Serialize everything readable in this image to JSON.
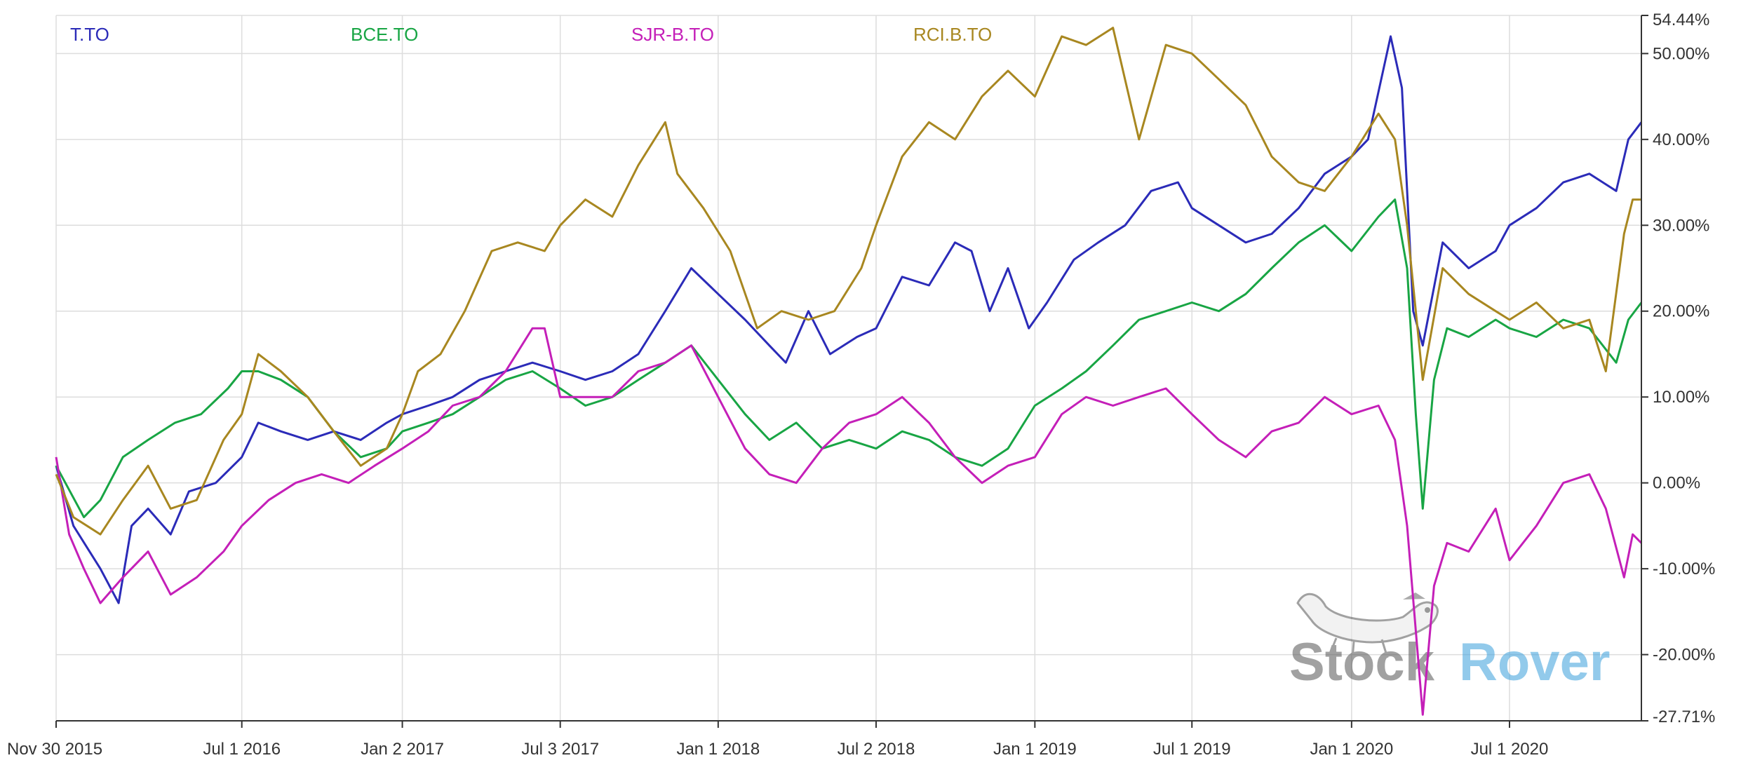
{
  "chart_data": {
    "type": "line",
    "legend": [
      "T.TO",
      "BCE.TO",
      "SJR-B.TO",
      "RCI.B.TO"
    ],
    "legend_placement": "top",
    "x_tick_labels": [
      "Nov 30 2015",
      "Jul 1 2016",
      "Jan 2 2017",
      "Jul 3 2017",
      "Jan 1 2018",
      "Jul 2 2018",
      "Jan 1 2019",
      "Jul 1 2019",
      "Jan 1 2020",
      "Jul 1 2020"
    ],
    "x_tick_dates": [
      "2015-11-30",
      "2016-07-01",
      "2017-01-02",
      "2017-07-03",
      "2018-01-01",
      "2018-07-02",
      "2019-01-01",
      "2019-07-01",
      "2020-01-01",
      "2020-07-01"
    ],
    "x_range": [
      "2015-11-30",
      "2020-11-30"
    ],
    "y_tick_labels": [
      "54.44%",
      "50.00%",
      "40.00%",
      "30.00%",
      "20.00%",
      "10.00%",
      "0.00%",
      "-10.00%",
      "-20.00%",
      "-27.71%"
    ],
    "y_tick_values": [
      54.44,
      50,
      40,
      30,
      20,
      10,
      0,
      -10,
      -20,
      -27.71
    ],
    "ylim": [
      -27.71,
      54.44
    ],
    "y_axis_side": "right",
    "grid": true,
    "watermark": {
      "text_main": "Stock",
      "text_accent": "Rover",
      "icon": "dog-icon"
    },
    "series": [
      {
        "name": "T.TO",
        "color": "#2b2bb8",
        "points": [
          [
            "2015-11-30",
            2
          ],
          [
            "2015-12-20",
            -5
          ],
          [
            "2016-01-20",
            -10
          ],
          [
            "2016-02-10",
            -14
          ],
          [
            "2016-02-25",
            -5
          ],
          [
            "2016-03-15",
            -3
          ],
          [
            "2016-04-10",
            -6
          ],
          [
            "2016-05-01",
            -1
          ],
          [
            "2016-06-01",
            0
          ],
          [
            "2016-07-01",
            3
          ],
          [
            "2016-07-20",
            7
          ],
          [
            "2016-08-15",
            6
          ],
          [
            "2016-09-15",
            5
          ],
          [
            "2016-10-15",
            6
          ],
          [
            "2016-11-15",
            5
          ],
          [
            "2016-12-15",
            7
          ],
          [
            "2017-01-02",
            8
          ],
          [
            "2017-02-01",
            9
          ],
          [
            "2017-03-01",
            10
          ],
          [
            "2017-04-01",
            12
          ],
          [
            "2017-05-01",
            13
          ],
          [
            "2017-06-01",
            14
          ],
          [
            "2017-07-03",
            13
          ],
          [
            "2017-08-01",
            12
          ],
          [
            "2017-09-01",
            13
          ],
          [
            "2017-10-01",
            15
          ],
          [
            "2017-11-01",
            20
          ],
          [
            "2017-12-01",
            25
          ],
          [
            "2018-01-01",
            22
          ],
          [
            "2018-02-01",
            19
          ],
          [
            "2018-03-01",
            16
          ],
          [
            "2018-03-20",
            14
          ],
          [
            "2018-04-15",
            20
          ],
          [
            "2018-05-10",
            15
          ],
          [
            "2018-06-10",
            17
          ],
          [
            "2018-07-02",
            18
          ],
          [
            "2018-08-01",
            24
          ],
          [
            "2018-09-01",
            23
          ],
          [
            "2018-10-01",
            28
          ],
          [
            "2018-10-20",
            27
          ],
          [
            "2018-11-10",
            20
          ],
          [
            "2018-12-01",
            25
          ],
          [
            "2018-12-25",
            18
          ],
          [
            "2019-01-15",
            21
          ],
          [
            "2019-02-15",
            26
          ],
          [
            "2019-03-15",
            28
          ],
          [
            "2019-04-15",
            30
          ],
          [
            "2019-05-15",
            34
          ],
          [
            "2019-06-15",
            35
          ],
          [
            "2019-07-01",
            32
          ],
          [
            "2019-08-01",
            30
          ],
          [
            "2019-09-01",
            28
          ],
          [
            "2019-10-01",
            29
          ],
          [
            "2019-11-01",
            32
          ],
          [
            "2019-12-01",
            36
          ],
          [
            "2020-01-01",
            38
          ],
          [
            "2020-01-20",
            40
          ],
          [
            "2020-02-15",
            52
          ],
          [
            "2020-02-28",
            46
          ],
          [
            "2020-03-12",
            20
          ],
          [
            "2020-03-23",
            16
          ],
          [
            "2020-04-15",
            28
          ],
          [
            "2020-05-15",
            25
          ],
          [
            "2020-06-15",
            27
          ],
          [
            "2020-07-01",
            30
          ],
          [
            "2020-08-01",
            32
          ],
          [
            "2020-09-01",
            35
          ],
          [
            "2020-10-01",
            36
          ],
          [
            "2020-11-01",
            34
          ],
          [
            "2020-11-15",
            40
          ],
          [
            "2020-11-30",
            42
          ]
        ]
      },
      {
        "name": "BCE.TO",
        "color": "#18a544",
        "points": [
          [
            "2015-11-30",
            2
          ],
          [
            "2016-01-01",
            -4
          ],
          [
            "2016-01-20",
            -2
          ],
          [
            "2016-02-15",
            3
          ],
          [
            "2016-03-15",
            5
          ],
          [
            "2016-04-15",
            7
          ],
          [
            "2016-05-15",
            8
          ],
          [
            "2016-06-15",
            11
          ],
          [
            "2016-07-01",
            13
          ],
          [
            "2016-07-20",
            13
          ],
          [
            "2016-08-15",
            12
          ],
          [
            "2016-09-15",
            10
          ],
          [
            "2016-10-15",
            6
          ],
          [
            "2016-11-15",
            3
          ],
          [
            "2016-12-15",
            4
          ],
          [
            "2017-01-02",
            6
          ],
          [
            "2017-02-01",
            7
          ],
          [
            "2017-03-01",
            8
          ],
          [
            "2017-04-01",
            10
          ],
          [
            "2017-05-01",
            12
          ],
          [
            "2017-06-01",
            13
          ],
          [
            "2017-07-03",
            11
          ],
          [
            "2017-08-01",
            9
          ],
          [
            "2017-09-01",
            10
          ],
          [
            "2017-10-01",
            12
          ],
          [
            "2017-11-01",
            14
          ],
          [
            "2017-12-01",
            16
          ],
          [
            "2018-01-01",
            12
          ],
          [
            "2018-02-01",
            8
          ],
          [
            "2018-03-01",
            5
          ],
          [
            "2018-04-01",
            7
          ],
          [
            "2018-05-01",
            4
          ],
          [
            "2018-06-01",
            5
          ],
          [
            "2018-07-02",
            4
          ],
          [
            "2018-08-01",
            6
          ],
          [
            "2018-09-01",
            5
          ],
          [
            "2018-10-01",
            3
          ],
          [
            "2018-11-01",
            2
          ],
          [
            "2018-12-01",
            4
          ],
          [
            "2019-01-01",
            9
          ],
          [
            "2019-02-01",
            11
          ],
          [
            "2019-03-01",
            13
          ],
          [
            "2019-04-01",
            16
          ],
          [
            "2019-05-01",
            19
          ],
          [
            "2019-06-01",
            20
          ],
          [
            "2019-07-01",
            21
          ],
          [
            "2019-08-01",
            20
          ],
          [
            "2019-09-01",
            22
          ],
          [
            "2019-10-01",
            25
          ],
          [
            "2019-11-01",
            28
          ],
          [
            "2019-12-01",
            30
          ],
          [
            "2020-01-01",
            27
          ],
          [
            "2020-02-01",
            31
          ],
          [
            "2020-02-20",
            33
          ],
          [
            "2020-03-05",
            25
          ],
          [
            "2020-03-15",
            8
          ],
          [
            "2020-03-23",
            -3
          ],
          [
            "2020-04-05",
            12
          ],
          [
            "2020-04-20",
            18
          ],
          [
            "2020-05-15",
            17
          ],
          [
            "2020-06-15",
            19
          ],
          [
            "2020-07-01",
            18
          ],
          [
            "2020-08-01",
            17
          ],
          [
            "2020-09-01",
            19
          ],
          [
            "2020-10-01",
            18
          ],
          [
            "2020-11-01",
            14
          ],
          [
            "2020-11-15",
            19
          ],
          [
            "2020-11-30",
            21
          ]
        ]
      },
      {
        "name": "SJR-B.TO",
        "color": "#c41fb8",
        "points": [
          [
            "2015-11-30",
            3
          ],
          [
            "2015-12-15",
            -6
          ],
          [
            "2016-01-01",
            -10
          ],
          [
            "2016-01-20",
            -14
          ],
          [
            "2016-02-15",
            -11
          ],
          [
            "2016-03-15",
            -8
          ],
          [
            "2016-04-10",
            -13
          ],
          [
            "2016-05-10",
            -11
          ],
          [
            "2016-06-10",
            -8
          ],
          [
            "2016-07-01",
            -5
          ],
          [
            "2016-08-01",
            -2
          ],
          [
            "2016-09-01",
            0
          ],
          [
            "2016-10-01",
            1
          ],
          [
            "2016-11-01",
            0
          ],
          [
            "2016-12-01",
            2
          ],
          [
            "2017-01-02",
            4
          ],
          [
            "2017-02-01",
            6
          ],
          [
            "2017-03-01",
            9
          ],
          [
            "2017-04-01",
            10
          ],
          [
            "2017-05-01",
            13
          ],
          [
            "2017-06-01",
            18
          ],
          [
            "2017-06-15",
            18
          ],
          [
            "2017-07-03",
            10
          ],
          [
            "2017-08-01",
            10
          ],
          [
            "2017-09-01",
            10
          ],
          [
            "2017-10-01",
            13
          ],
          [
            "2017-11-01",
            14
          ],
          [
            "2017-12-01",
            16
          ],
          [
            "2018-01-01",
            10
          ],
          [
            "2018-02-01",
            4
          ],
          [
            "2018-03-01",
            1
          ],
          [
            "2018-04-01",
            0
          ],
          [
            "2018-05-01",
            4
          ],
          [
            "2018-06-01",
            7
          ],
          [
            "2018-07-02",
            8
          ],
          [
            "2018-08-01",
            10
          ],
          [
            "2018-09-01",
            7
          ],
          [
            "2018-10-01",
            3
          ],
          [
            "2018-11-01",
            0
          ],
          [
            "2018-12-01",
            2
          ],
          [
            "2019-01-01",
            3
          ],
          [
            "2019-02-01",
            8
          ],
          [
            "2019-03-01",
            10
          ],
          [
            "2019-04-01",
            9
          ],
          [
            "2019-05-01",
            10
          ],
          [
            "2019-06-01",
            11
          ],
          [
            "2019-07-01",
            8
          ],
          [
            "2019-08-01",
            5
          ],
          [
            "2019-09-01",
            3
          ],
          [
            "2019-10-01",
            6
          ],
          [
            "2019-11-01",
            7
          ],
          [
            "2019-12-01",
            10
          ],
          [
            "2020-01-01",
            8
          ],
          [
            "2020-02-01",
            9
          ],
          [
            "2020-02-20",
            5
          ],
          [
            "2020-03-05",
            -5
          ],
          [
            "2020-03-23",
            -27
          ],
          [
            "2020-04-05",
            -12
          ],
          [
            "2020-04-20",
            -7
          ],
          [
            "2020-05-15",
            -8
          ],
          [
            "2020-06-15",
            -3
          ],
          [
            "2020-07-01",
            -9
          ],
          [
            "2020-08-01",
            -5
          ],
          [
            "2020-09-01",
            0
          ],
          [
            "2020-10-01",
            1
          ],
          [
            "2020-10-20",
            -3
          ],
          [
            "2020-11-10",
            -11
          ],
          [
            "2020-11-20",
            -6
          ],
          [
            "2020-11-30",
            -7
          ]
        ]
      },
      {
        "name": "RCI.B.TO",
        "color": "#a88720",
        "points": [
          [
            "2015-11-30",
            1
          ],
          [
            "2015-12-20",
            -4
          ],
          [
            "2016-01-20",
            -6
          ],
          [
            "2016-02-15",
            -2
          ],
          [
            "2016-03-15",
            2
          ],
          [
            "2016-04-10",
            -3
          ],
          [
            "2016-05-10",
            -2
          ],
          [
            "2016-06-10",
            5
          ],
          [
            "2016-07-01",
            8
          ],
          [
            "2016-07-20",
            15
          ],
          [
            "2016-08-15",
            13
          ],
          [
            "2016-09-15",
            10
          ],
          [
            "2016-10-15",
            6
          ],
          [
            "2016-11-15",
            2
          ],
          [
            "2016-12-15",
            4
          ],
          [
            "2017-01-02",
            8
          ],
          [
            "2017-01-20",
            13
          ],
          [
            "2017-02-15",
            15
          ],
          [
            "2017-03-15",
            20
          ],
          [
            "2017-04-15",
            27
          ],
          [
            "2017-05-15",
            28
          ],
          [
            "2017-06-15",
            27
          ],
          [
            "2017-07-03",
            30
          ],
          [
            "2017-08-01",
            33
          ],
          [
            "2017-09-01",
            31
          ],
          [
            "2017-10-01",
            37
          ],
          [
            "2017-11-01",
            42
          ],
          [
            "2017-11-15",
            36
          ],
          [
            "2017-12-15",
            32
          ],
          [
            "2018-01-15",
            27
          ],
          [
            "2018-02-15",
            18
          ],
          [
            "2018-03-15",
            20
          ],
          [
            "2018-04-15",
            19
          ],
          [
            "2018-05-15",
            20
          ],
          [
            "2018-06-15",
            25
          ],
          [
            "2018-07-02",
            30
          ],
          [
            "2018-08-01",
            38
          ],
          [
            "2018-09-01",
            42
          ],
          [
            "2018-10-01",
            40
          ],
          [
            "2018-11-01",
            45
          ],
          [
            "2018-12-01",
            48
          ],
          [
            "2019-01-01",
            45
          ],
          [
            "2019-02-01",
            52
          ],
          [
            "2019-03-01",
            51
          ],
          [
            "2019-04-01",
            53
          ],
          [
            "2019-05-01",
            40
          ],
          [
            "2019-06-01",
            51
          ],
          [
            "2019-07-01",
            50
          ],
          [
            "2019-08-01",
            47
          ],
          [
            "2019-09-01",
            44
          ],
          [
            "2019-10-01",
            38
          ],
          [
            "2019-11-01",
            35
          ],
          [
            "2019-12-01",
            34
          ],
          [
            "2020-01-01",
            38
          ],
          [
            "2020-02-01",
            43
          ],
          [
            "2020-02-20",
            40
          ],
          [
            "2020-03-05",
            30
          ],
          [
            "2020-03-23",
            12
          ],
          [
            "2020-04-15",
            25
          ],
          [
            "2020-05-15",
            22
          ],
          [
            "2020-06-15",
            20
          ],
          [
            "2020-07-01",
            19
          ],
          [
            "2020-08-01",
            21
          ],
          [
            "2020-09-01",
            18
          ],
          [
            "2020-10-01",
            19
          ],
          [
            "2020-10-20",
            13
          ],
          [
            "2020-11-10",
            29
          ],
          [
            "2020-11-20",
            33
          ],
          [
            "2020-11-30",
            33
          ]
        ]
      }
    ]
  }
}
